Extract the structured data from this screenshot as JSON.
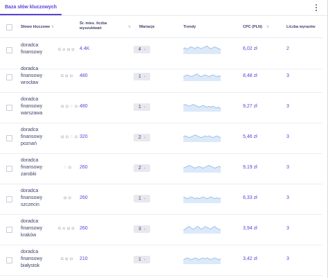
{
  "tab": {
    "label": "Baza słów kluczowych"
  },
  "columns": [
    {
      "label": "Słowo kluczowe"
    },
    {
      "label": "Śr. mies. liczba wyszukiwań"
    },
    {
      "label": "Wariacje"
    },
    {
      "label": "Trendy"
    },
    {
      "label": "CPC (PLN)"
    },
    {
      "label": "Liczba wyrazów"
    }
  ],
  "rows": [
    {
      "keyword": [
        "doradca",
        "finansowy"
      ],
      "icons": "G ⊙ ⊟ ⊡",
      "volume": "4.4K",
      "variations": "4",
      "cpc": "6,02 zł",
      "words": "2",
      "trend": [
        6,
        7,
        5,
        7,
        8,
        7,
        6,
        8,
        7,
        6,
        7,
        8,
        9,
        7,
        6,
        7,
        8,
        7,
        6,
        5
      ]
    },
    {
      "keyword": [
        "doradca",
        "finansowy",
        "wrocław"
      ],
      "icons": "G ⊟ ⊡",
      "volume": "480",
      "variations": "1",
      "cpc": "8,48 zł",
      "words": "3",
      "trend": [
        5,
        6,
        7,
        6,
        5,
        6,
        7,
        8,
        6,
        5,
        6,
        7,
        6,
        5,
        6,
        7,
        6,
        5,
        6,
        5
      ]
    },
    {
      "keyword": [
        "doradca",
        "finansowy",
        "warszawa"
      ],
      "icons": "⊟ ⊡ ♡ ⊡",
      "volume": "480",
      "variations": "1",
      "cpc": "9,27 zł",
      "words": "3",
      "trend": [
        7,
        8,
        7,
        6,
        7,
        8,
        7,
        6,
        5,
        6,
        7,
        6,
        5,
        6,
        5,
        6,
        5,
        4,
        5,
        3
      ]
    },
    {
      "keyword": [
        "doradca",
        "finansowy",
        "poznań"
      ],
      "icons": "⊟ ⊡ ♡ ⊡",
      "volume": "320",
      "variations": "2",
      "cpc": "5,46 zł",
      "words": "3",
      "trend": [
        6,
        7,
        6,
        5,
        6,
        7,
        8,
        7,
        6,
        5,
        6,
        7,
        6,
        7,
        6,
        5,
        6,
        7,
        6,
        5
      ]
    },
    {
      "keyword": [
        "doradca",
        "finansowy",
        "zarobki"
      ],
      "icons": "♡ ⊡",
      "volume": "260",
      "variations": "2",
      "cpc": "9,19 zł",
      "words": "3",
      "trend": [
        5,
        6,
        7,
        8,
        7,
        6,
        5,
        6,
        7,
        6,
        5,
        6,
        7,
        8,
        7,
        6,
        5,
        6,
        7,
        6
      ]
    },
    {
      "keyword": [
        "doradca",
        "finansowy",
        "szczecin"
      ],
      "icons": "⊟ ⊡",
      "volume": "260",
      "variations": "1",
      "cpc": "6,33 zł",
      "words": "3",
      "trend": [
        7,
        6,
        5,
        6,
        7,
        6,
        5,
        6,
        5,
        6,
        7,
        6,
        5,
        6,
        7,
        6,
        5,
        6,
        5,
        6
      ]
    },
    {
      "keyword": [
        "doradca",
        "finansowy",
        "kraków"
      ],
      "icons": "G ⊙ ⊟ ⊡",
      "volume": "260",
      "variations": "3",
      "cpc": "3,94 zł",
      "words": "3",
      "trend": [
        4,
        5,
        7,
        8,
        6,
        5,
        6,
        8,
        7,
        5,
        6,
        8,
        7,
        6,
        5,
        7,
        8,
        6,
        5,
        4
      ]
    },
    {
      "keyword": [
        "doradca",
        "finansowy",
        "białystok"
      ],
      "icons": "G ⊟ ⊡",
      "volume": "210",
      "variations": "1",
      "cpc": "3,42 zł",
      "words": "3",
      "trend": [
        5,
        6,
        7,
        6,
        5,
        6,
        7,
        6,
        5,
        6,
        7,
        6,
        7,
        6,
        5,
        6,
        7,
        6,
        5,
        6
      ]
    }
  ],
  "colors": {
    "accent": "#5a44d6",
    "trend_line": "#8fb7e9",
    "trend_fill": "#dce9f9",
    "variation_bg": "#e8e9ef"
  }
}
